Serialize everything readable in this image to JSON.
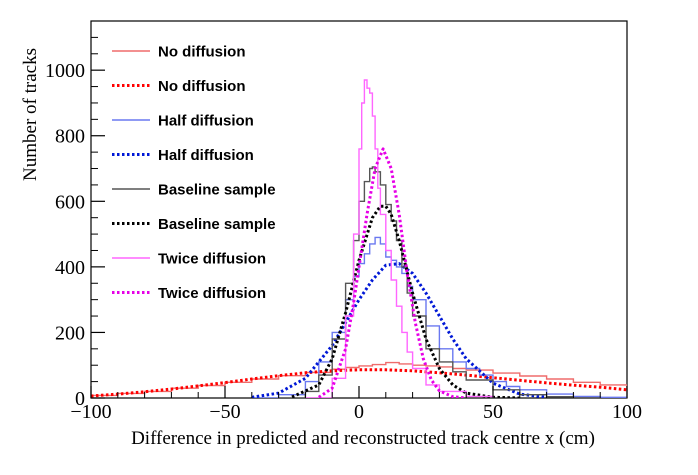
{
  "chart_data": {
    "type": "line",
    "xlabel": "Difference in predicted and reconstructed track centre x (cm)",
    "ylabel": "Number of tracks",
    "xlim": [
      -100,
      100
    ],
    "ylim": [
      0,
      1150
    ],
    "x_ticks": [
      -100,
      -50,
      0,
      50,
      100
    ],
    "x_tick_labels": [
      "−100",
      "−50",
      "0",
      "50",
      "100"
    ],
    "y_ticks": [
      0,
      200,
      400,
      600,
      800,
      1000
    ],
    "y_tick_labels": [
      "0",
      "200",
      "400",
      "600",
      "800",
      "1000"
    ],
    "grid": false,
    "legend_position": "top-left",
    "series": [
      {
        "name": "No diffusion",
        "style": "hist",
        "color": "#ef6b6b",
        "x": [
          -100,
          -90,
          -80,
          -70,
          -60,
          -50,
          -40,
          -30,
          -20,
          -10,
          -5,
          0,
          5,
          10,
          15,
          20,
          25,
          30,
          35,
          40,
          50,
          60,
          70,
          80,
          90,
          100
        ],
        "y": [
          8,
          14,
          20,
          30,
          38,
          48,
          58,
          68,
          78,
          88,
          93,
          98,
          102,
          108,
          104,
          100,
          98,
          95,
          90,
          85,
          76,
          67,
          58,
          48,
          40,
          30
        ]
      },
      {
        "name": "No diffusion",
        "style": "fit",
        "color": "#ff0000",
        "x": [
          -100,
          -90,
          -80,
          -70,
          -60,
          -50,
          -40,
          -30,
          -20,
          -10,
          0,
          10,
          20,
          30,
          40,
          50,
          60,
          70,
          80,
          90,
          100
        ],
        "y": [
          6,
          12,
          19,
          27,
          37,
          47,
          58,
          68,
          77,
          83,
          86,
          86,
          83,
          77,
          70,
          62,
          54,
          46,
          39,
          33,
          25
        ]
      },
      {
        "name": "Half diffusion",
        "style": "hist",
        "color": "#6a78f0",
        "x": [
          -40,
          -30,
          -20,
          -15,
          -10,
          -5,
          -2,
          0,
          2,
          4,
          6,
          8,
          10,
          12,
          14,
          16,
          18,
          20,
          25,
          30,
          35,
          40,
          45,
          50,
          55,
          60,
          70,
          80,
          90,
          100
        ],
        "y": [
          0,
          10,
          50,
          110,
          200,
          300,
          370,
          410,
          440,
          470,
          490,
          470,
          430,
          420,
          400,
          380,
          340,
          300,
          220,
          150,
          110,
          90,
          70,
          50,
          35,
          25,
          12,
          5,
          2,
          0
        ]
      },
      {
        "name": "Half diffusion",
        "style": "fit",
        "color": "#0018d6",
        "x": [
          -40,
          -30,
          -20,
          -10,
          -5,
          0,
          5,
          10,
          15,
          20,
          25,
          30,
          35,
          40,
          50,
          60,
          70
        ],
        "y": [
          2,
          15,
          60,
          160,
          230,
          300,
          360,
          405,
          410,
          380,
          320,
          250,
          180,
          120,
          45,
          12,
          2
        ]
      },
      {
        "name": "Baseline sample",
        "style": "hist",
        "color": "#555555",
        "x": [
          -30,
          -20,
          -15,
          -10,
          -5,
          -2,
          0,
          2,
          4,
          5,
          6,
          8,
          10,
          12,
          14,
          16,
          18,
          20,
          25,
          30,
          35,
          40,
          50,
          60,
          70,
          80
        ],
        "y": [
          0,
          20,
          70,
          180,
          350,
          480,
          600,
          660,
          700,
          705,
          690,
          650,
          590,
          540,
          480,
          400,
          320,
          250,
          150,
          110,
          80,
          55,
          25,
          10,
          4,
          0
        ]
      },
      {
        "name": "Baseline sample",
        "style": "fit",
        "color": "#000000",
        "x": [
          -25,
          -15,
          -10,
          -5,
          0,
          5,
          8,
          10,
          12,
          15,
          20,
          25,
          30,
          35,
          40,
          50,
          60
        ],
        "y": [
          3,
          40,
          120,
          260,
          420,
          550,
          585,
          585,
          560,
          480,
          320,
          180,
          90,
          40,
          15,
          2,
          0
        ]
      },
      {
        "name": "Twice diffusion",
        "style": "hist",
        "color": "#ff66ff",
        "x": [
          -20,
          -10,
          -5,
          -2,
          0,
          1,
          2,
          3,
          4,
          5,
          6,
          7,
          8,
          10,
          12,
          14,
          16,
          18,
          20,
          25,
          30,
          40,
          50
        ],
        "y": [
          0,
          60,
          250,
          500,
          760,
          900,
          970,
          945,
          930,
          860,
          760,
          640,
          560,
          450,
          360,
          280,
          200,
          140,
          90,
          40,
          20,
          5,
          0
        ]
      },
      {
        "name": "Twice diffusion",
        "style": "fit",
        "color": "#e600e6",
        "x": [
          -15,
          -10,
          -5,
          -2,
          0,
          3,
          6,
          9,
          12,
          15,
          18,
          21,
          24,
          27,
          30,
          35,
          40
        ],
        "y": [
          2,
          30,
          150,
          290,
          400,
          560,
          700,
          760,
          700,
          560,
          380,
          230,
          120,
          55,
          22,
          4,
          0
        ]
      }
    ]
  }
}
